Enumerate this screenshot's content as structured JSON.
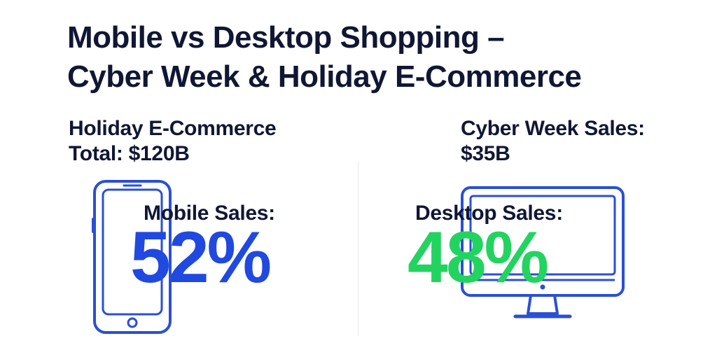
{
  "title": {
    "line1": "Mobile vs Desktop Shopping –",
    "line2": "Cyber Week & Holiday E-Commerce"
  },
  "holiday": {
    "line1": "Holiday E-Commerce",
    "line2": "Total: $120B"
  },
  "cyber_week": {
    "line1": "Cyber Week Sales:",
    "line2": "$35B"
  },
  "mobile": {
    "label": "Mobile Sales:",
    "value": "52%",
    "icon": "smartphone-icon",
    "color": "#1f49e0"
  },
  "desktop": {
    "label": "Desktop Sales:",
    "value": "48%",
    "icon": "desktop-monitor-icon",
    "color": "#22d45f"
  },
  "colors": {
    "text": "#0f1733",
    "icon_stroke": "#2a4fd6",
    "background": "#ffffff"
  }
}
